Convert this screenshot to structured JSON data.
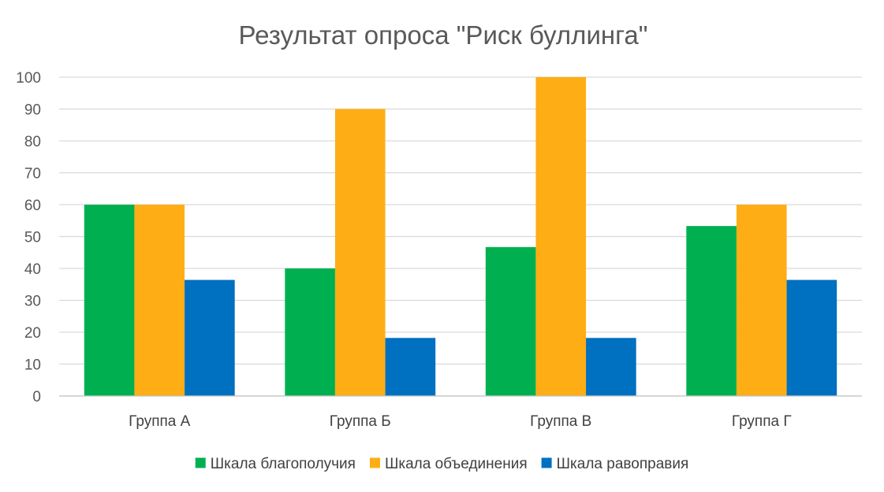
{
  "chart_data": {
    "type": "bar",
    "title": "Результат опроса \"Риск буллинга\"",
    "xlabel": "",
    "ylabel": "",
    "categories": [
      "Группа А",
      "Группа Б",
      "Группа В",
      "Группа Г"
    ],
    "series": [
      {
        "name": "Шкала благополучия",
        "color": "#00b050",
        "values": [
          60,
          40,
          46.7,
          53.3
        ]
      },
      {
        "name": "Шкала объединения",
        "color": "#ffad14",
        "values": [
          60,
          90,
          100,
          60
        ]
      },
      {
        "name": "Шкала равоправия",
        "color": "#0070c0",
        "values": [
          36.4,
          18.2,
          18.2,
          36.4
        ]
      }
    ],
    "ylim": [
      0,
      100
    ],
    "yticks": [
      0,
      10,
      20,
      30,
      40,
      50,
      60,
      70,
      80,
      90,
      100
    ],
    "grid": true,
    "legend_position": "bottom"
  }
}
